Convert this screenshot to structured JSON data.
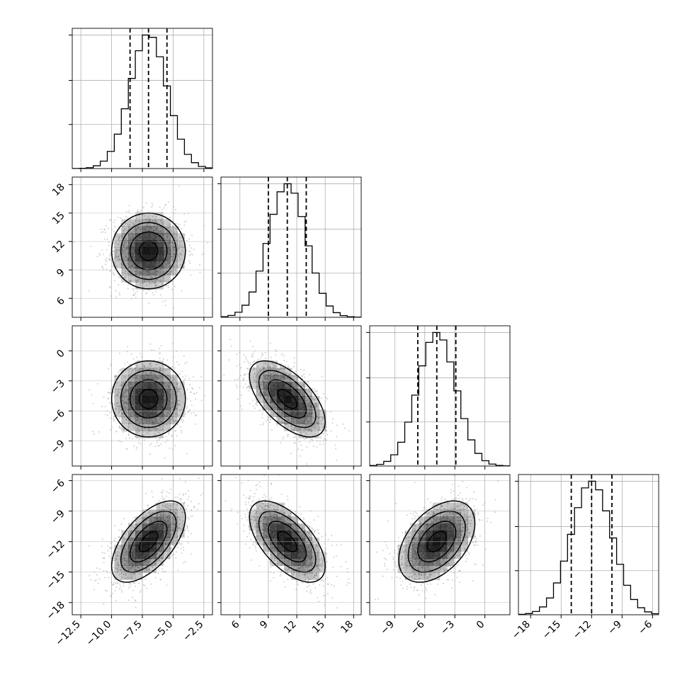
{
  "chart_data": {
    "type": "corner",
    "parameters": [
      {
        "range": [
          -13.2,
          -1.8
        ],
        "ticks": [
          -12.5,
          -10.0,
          -7.5,
          -5.0,
          -2.5
        ],
        "tick_labels": [
          "−12.5",
          "−10.0",
          "−7.5",
          "−5.0",
          "−2.5"
        ],
        "quantiles": [
          -8.5,
          -7.0,
          -5.5
        ],
        "mean": -7.0,
        "sd": 1.5
      },
      {
        "range": [
          4.0,
          18.8
        ],
        "ticks": [
          6,
          9,
          12,
          15,
          18
        ],
        "tick_labels": [
          "6",
          "9",
          "12",
          "15",
          "18"
        ],
        "quantiles": [
          9.0,
          11.0,
          13.0
        ],
        "mean": 11.0,
        "sd": 2.0
      },
      {
        "range": [
          -11.5,
          2.5
        ],
        "ticks": [
          -9,
          -6,
          -3,
          0
        ],
        "tick_labels": [
          "−9",
          "−6",
          "−3",
          "0"
        ],
        "quantiles": [
          -6.7,
          -4.8,
          -2.9
        ],
        "mean": -4.8,
        "sd": 1.9
      },
      {
        "range": [
          -19.2,
          -5.4
        ],
        "ticks": [
          -18,
          -15,
          -12,
          -9,
          -6
        ],
        "tick_labels": [
          "−18",
          "−15",
          "−12",
          "−9",
          "−6"
        ],
        "quantiles": [
          -14.0,
          -12.0,
          -10.0
        ],
        "mean": -12.0,
        "sd": 2.0
      }
    ],
    "correlations": [
      [
        1.0,
        0.0,
        0.0,
        0.6
      ],
      [
        0.0,
        1.0,
        -0.6,
        -0.6
      ],
      [
        0.0,
        -0.6,
        1.0,
        0.45
      ],
      [
        0.6,
        -0.6,
        0.45,
        1.0
      ]
    ],
    "histogram": {
      "style": "step",
      "bins": 20
    },
    "grid": true,
    "contour_levels": 4,
    "colors": {
      "hist": "#000000",
      "points": "#aaaaaa",
      "density": "#000000",
      "grid": "#b0b0b0"
    }
  }
}
